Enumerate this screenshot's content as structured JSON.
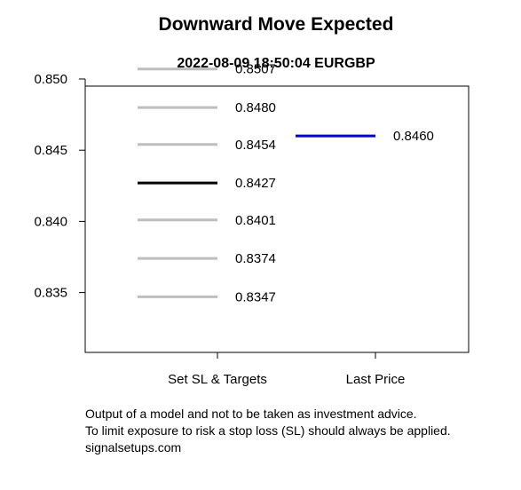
{
  "chart_data": {
    "type": "line",
    "title": "Downward Move Expected",
    "subtitle": "2022-08-09 18:50:04 EURGBP",
    "categories": [
      "Set SL & Targets",
      "Last Price"
    ],
    "ylim": [
      0.8308,
      0.8495
    ],
    "y_ticks": [
      {
        "value": 0.835,
        "label": "0.835"
      },
      {
        "value": 0.84,
        "label": "0.840"
      },
      {
        "value": 0.845,
        "label": "0.845"
      },
      {
        "value": 0.85,
        "label": "0.850"
      }
    ],
    "grid": false,
    "series": [
      {
        "category": "Set SL & Targets",
        "levels": [
          {
            "value": 0.8507,
            "label": "0.8507",
            "color": "#bebebe"
          },
          {
            "value": 0.848,
            "label": "0.8480",
            "color": "#bebebe"
          },
          {
            "value": 0.8454,
            "label": "0.8454",
            "color": "#bebebe"
          },
          {
            "value": 0.8427,
            "label": "0.8427",
            "color": "#000000"
          },
          {
            "value": 0.8401,
            "label": "0.8401",
            "color": "#bebebe"
          },
          {
            "value": 0.8374,
            "label": "0.8374",
            "color": "#bebebe"
          },
          {
            "value": 0.8347,
            "label": "0.8347",
            "color": "#bebebe"
          }
        ]
      },
      {
        "category": "Last Price",
        "levels": [
          {
            "value": 0.846,
            "label": "0.8460",
            "color": "#0000cd"
          }
        ]
      }
    ]
  },
  "footer": {
    "line1": "Output of a model and not to be taken as investment advice.",
    "line2": "To limit exposure to risk a stop loss (SL) should always be applied.",
    "line3": "signalsetups.com"
  }
}
